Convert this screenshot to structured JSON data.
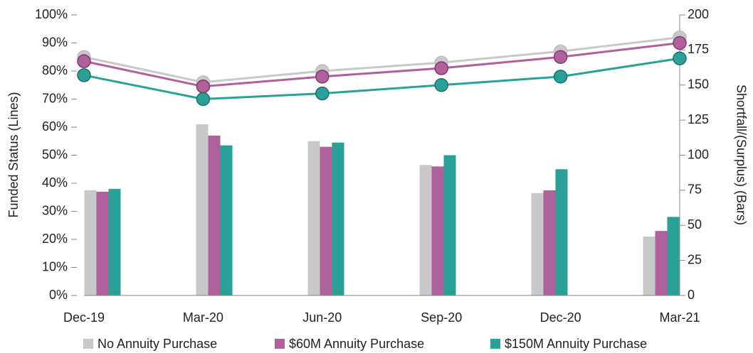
{
  "chart_data": {
    "type": "bar-line",
    "categories": [
      "Dec-19",
      "Mar-20",
      "Jun-20",
      "Sep-20",
      "Dec-20",
      "Mar-21"
    ],
    "ylabel": "Funded Status (Lines)",
    "y2label": "Shortfall/(Surplus) (Bars)",
    "ylim": [
      0,
      100
    ],
    "yticks": [
      {
        "value": 0,
        "label": "0%"
      },
      {
        "value": 10,
        "label": "10%"
      },
      {
        "value": 20,
        "label": "20%"
      },
      {
        "value": 30,
        "label": "30%"
      },
      {
        "value": 40,
        "label": "40%"
      },
      {
        "value": 50,
        "label": "50%"
      },
      {
        "value": 60,
        "label": "60%"
      },
      {
        "value": 70,
        "label": "70%"
      },
      {
        "value": 80,
        "label": "80%"
      },
      {
        "value": 90,
        "label": "90%"
      },
      {
        "value": 100,
        "label": "100%"
      }
    ],
    "y2lim": [
      0,
      200
    ],
    "y2ticks": [
      0,
      25,
      50,
      75,
      100,
      125,
      150,
      175,
      200
    ],
    "series": [
      {
        "name": "No Annuity Purchase",
        "color": "#c9c9c9",
        "marker_edge": "#bdbdbd",
        "bar_values": [
          75,
          122,
          110,
          93,
          73,
          42
        ],
        "bar_axis": "y2",
        "line_values": [
          85,
          76,
          80,
          83,
          87,
          92
        ]
      },
      {
        "name": "$60M Annuity Purchase",
        "color": "#b0609b",
        "marker_edge": "#7d3a6c",
        "bar_values": [
          74,
          114,
          106,
          92,
          75,
          46
        ],
        "bar_axis": "y2",
        "line_values": [
          83.5,
          74.5,
          78,
          81,
          85,
          90
        ]
      },
      {
        "name": "$150M Annuity Purchase",
        "color": "#2aa197",
        "marker_edge": "#1d6f68",
        "bar_values": [
          76,
          107,
          109,
          100,
          90,
          56
        ],
        "bar_axis": "y2",
        "line_values": [
          78.5,
          70,
          72,
          75,
          78,
          84.5
        ]
      }
    ]
  }
}
